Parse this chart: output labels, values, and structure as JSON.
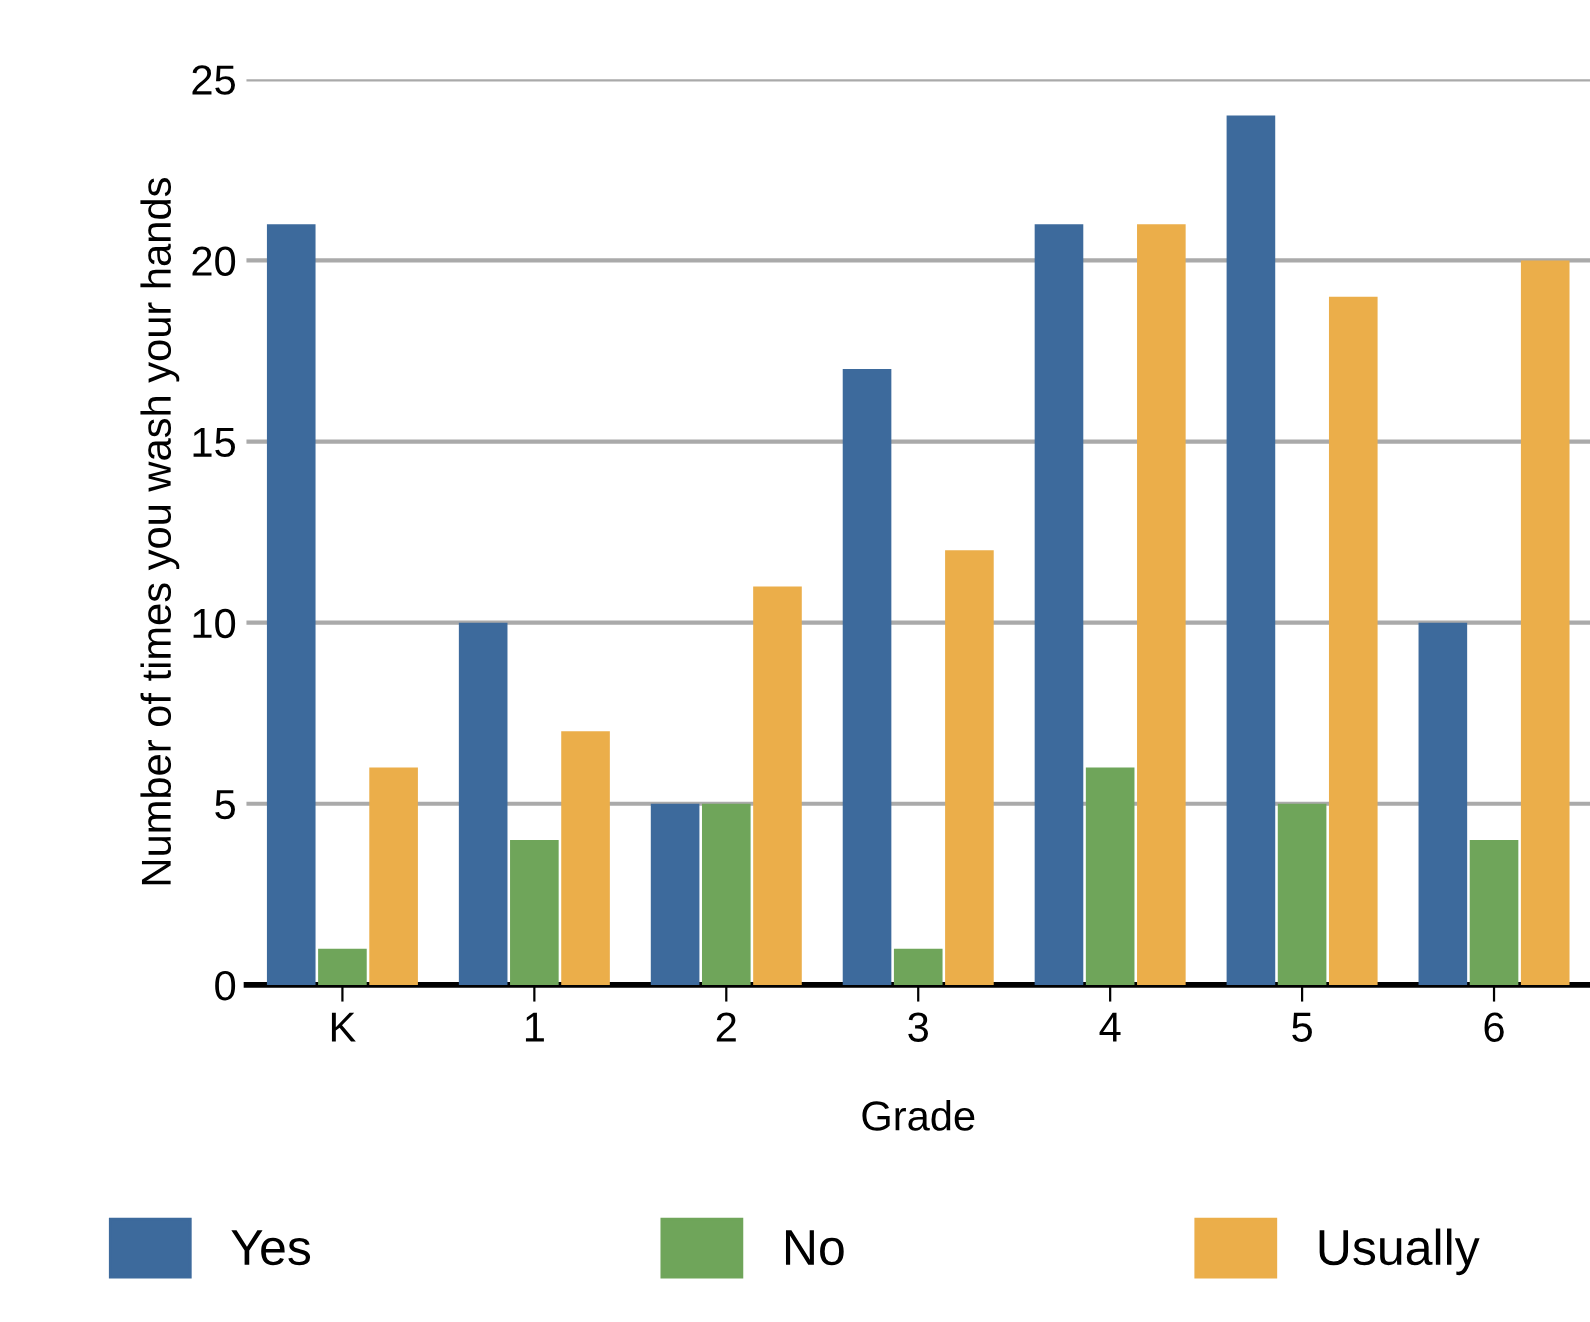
{
  "chart_data": {
    "type": "bar",
    "xlabel": "Grade",
    "ylabel": "Number of times you wash your hands",
    "categories": [
      "K",
      "1",
      "2",
      "3",
      "4",
      "5",
      "6"
    ],
    "series": [
      {
        "name": "Yes",
        "color": "#3d6a9c",
        "values": [
          21,
          10,
          5,
          17,
          21,
          24,
          10
        ]
      },
      {
        "name": "No",
        "color": "#6fa55a",
        "values": [
          1,
          4,
          5,
          1,
          6,
          5,
          4
        ]
      },
      {
        "name": "Usually",
        "color": "#ebae4a",
        "values": [
          6,
          7,
          11,
          12,
          21,
          19,
          20
        ]
      }
    ],
    "ylim": [
      0,
      25
    ],
    "yticks": [
      0,
      5,
      10,
      15,
      20,
      25
    ],
    "grid": "y",
    "legend": "bottom"
  }
}
